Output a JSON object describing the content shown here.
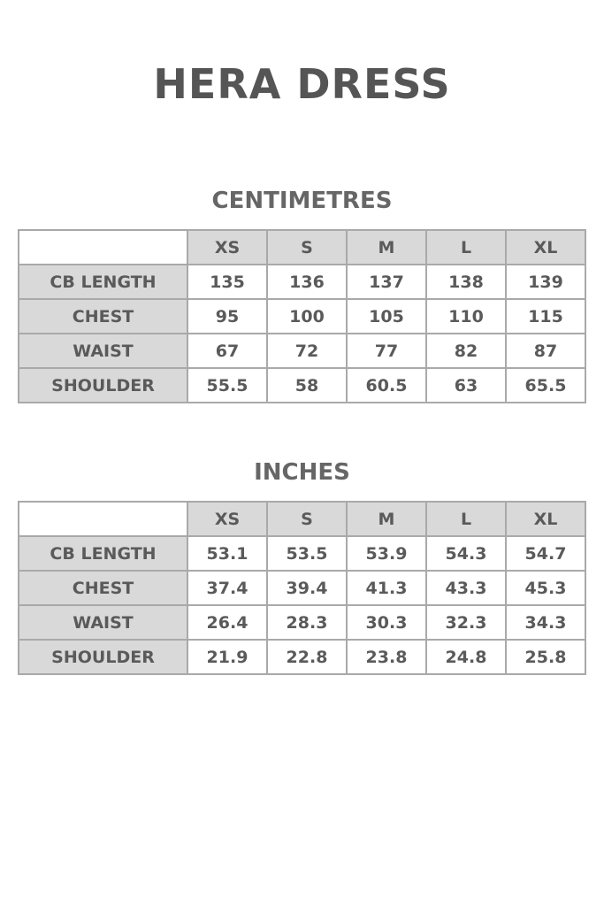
{
  "title": "HERA DRESS",
  "sizes": [
    "XS",
    "S",
    "M",
    "L",
    "XL"
  ],
  "tables": [
    {
      "heading": "CENTIMETRES",
      "rows": [
        {
          "label": "CB LENGTH",
          "values": [
            "135",
            "136",
            "137",
            "138",
            "139"
          ]
        },
        {
          "label": "CHEST",
          "values": [
            "95",
            "100",
            "105",
            "110",
            "115"
          ]
        },
        {
          "label": "WAIST",
          "values": [
            "67",
            "72",
            "77",
            "82",
            "87"
          ]
        },
        {
          "label": "SHOULDER",
          "values": [
            "55.5",
            "58",
            "60.5",
            "63",
            "65.5"
          ]
        }
      ]
    },
    {
      "heading": "INCHES",
      "rows": [
        {
          "label": "CB LENGTH",
          "values": [
            "53.1",
            "53.5",
            "53.9",
            "54.3",
            "54.7"
          ]
        },
        {
          "label": "CHEST",
          "values": [
            "37.4",
            "39.4",
            "41.3",
            "43.3",
            "45.3"
          ]
        },
        {
          "label": "WAIST",
          "values": [
            "26.4",
            "28.3",
            "30.3",
            "32.3",
            "34.3"
          ]
        },
        {
          "label": "SHOULDER",
          "values": [
            "21.9",
            "22.8",
            "23.8",
            "24.8",
            "25.8"
          ]
        }
      ]
    }
  ],
  "colors": {
    "header_bg": "#d9d9d9",
    "border": "#a9a9a9",
    "text": "#555555"
  }
}
